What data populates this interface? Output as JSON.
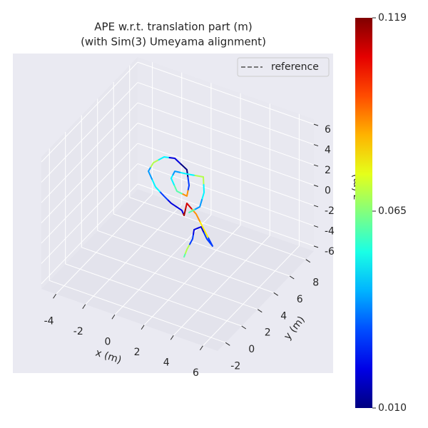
{
  "chart_data": {
    "type": "trajectory3d",
    "title": [
      "APE w.r.t. translation part (m)",
      "(with Sim(3) Umeyama alignment)"
    ],
    "xlabel": "x (m)",
    "ylabel": "y (m)",
    "zlabel": "z (m)",
    "xlim": [
      -5,
      7
    ],
    "ylim": [
      -3,
      9
    ],
    "zlim": [
      -6.5,
      6.5
    ],
    "xticks": [
      -4,
      -2,
      0,
      2,
      4,
      6
    ],
    "yticks": [
      -2,
      0,
      2,
      4,
      6,
      8
    ],
    "zticks": [
      -6,
      -4,
      -2,
      0,
      2,
      4,
      6
    ],
    "legend": {
      "label": "reference",
      "color": "#666666",
      "loc": "upper right"
    },
    "colorbar": {
      "cmap": "jet",
      "lim": [
        0.01,
        0.119
      ],
      "ticks": [
        {
          "value": 0.01,
          "label": "0.010"
        },
        0.065,
        0.119
      ]
    },
    "trajectory": {
      "x": [
        1.44,
        1.63,
        2.02,
        2.12,
        2.6,
        2.99,
        3.38,
        2.75,
        2.26,
        1.63,
        1.44,
        1.29,
        0.56,
        0.08,
        -0.51,
        -0.99,
        -0.65,
        0.08,
        0.81,
        1.63,
        1.78,
        1.63,
        0.95,
        0.56,
        0.81,
        1.63,
        2.75,
        2.8,
        2.51,
        1.78
      ],
      "y": [
        3,
        3,
        3,
        3,
        3,
        3,
        3,
        3,
        3,
        3,
        3,
        3,
        3,
        3,
        3,
        3,
        3,
        3,
        3,
        3,
        3,
        3,
        3,
        3,
        3,
        3,
        3,
        3,
        3,
        3
      ],
      "z": [
        -4.98,
        -4.17,
        -2.92,
        -1.96,
        -1.43,
        -2.43,
        -2.93,
        -1.5,
        -0.34,
        0.39,
        -0.9,
        -0.48,
        -0.15,
        0.3,
        0.92,
        2.22,
        3.23,
        4.17,
        4.4,
        3.7,
        2.23,
        1.1,
        1.24,
        2.31,
        3.13,
        3.28,
        3.56,
        2.05,
        0.49,
        -0.44
      ],
      "error": [
        0.06,
        0.07,
        0.03,
        0.02,
        0.02,
        0.03,
        0.03,
        0.08,
        0.09,
        0.11,
        0.115,
        0.02,
        0.02,
        0.03,
        0.05,
        0.04,
        0.07,
        0.05,
        0.02,
        0.01,
        0.03,
        0.09,
        0.06,
        0.05,
        0.04,
        0.05,
        0.07,
        0.05,
        0.04,
        0.06
      ]
    }
  }
}
